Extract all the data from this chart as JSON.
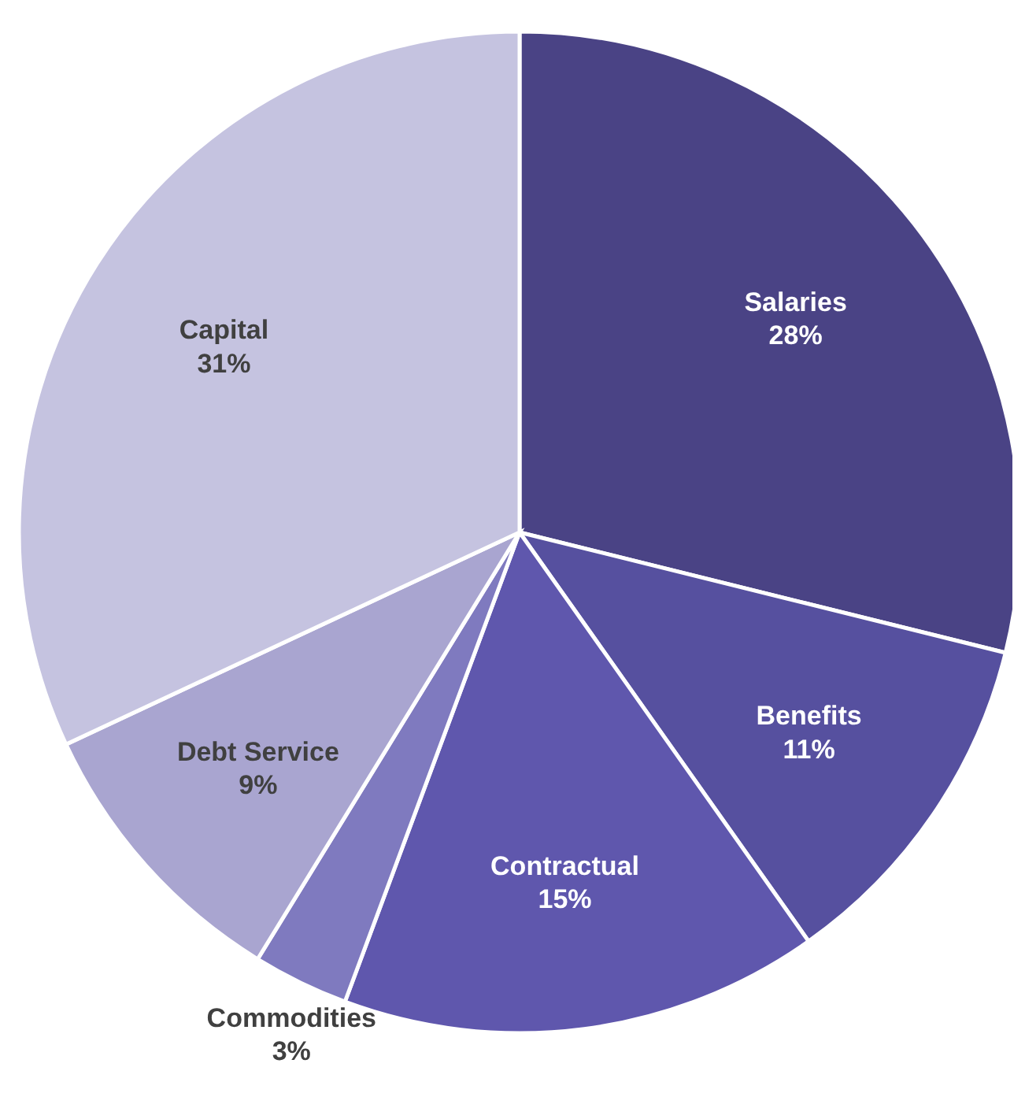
{
  "chart_data": {
    "type": "pie",
    "categories": [
      "Salaries",
      "Benefits",
      "Contractual",
      "Commodities",
      "Debt Service",
      "Capital"
    ],
    "values": [
      28,
      11,
      15,
      3,
      9,
      31
    ],
    "colors": [
      "#4a4385",
      "#56509f",
      "#5f57ad",
      "#7f7abf",
      "#a9a5d0",
      "#c5c3e0"
    ],
    "value_labels": [
      "28%",
      "11%",
      "15%",
      "3%",
      "9%",
      "31%"
    ]
  }
}
